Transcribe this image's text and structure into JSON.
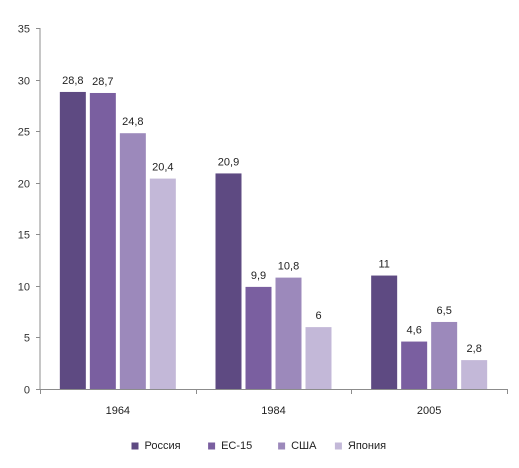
{
  "chart_data": {
    "type": "bar",
    "categories": [
      "1964",
      "1984",
      "2005"
    ],
    "series": [
      {
        "name": "Россия",
        "color": "#5e4a82",
        "values": [
          28.8,
          20.9,
          11
        ],
        "labels": [
          "28,8",
          "20,9",
          "11"
        ]
      },
      {
        "name": "ЕС-15",
        "color": "#7a5fa0",
        "values": [
          28.7,
          9.9,
          4.6
        ],
        "labels": [
          "28,7",
          "9,9",
          "4,6"
        ]
      },
      {
        "name": "США",
        "color": "#9c89bb",
        "values": [
          24.8,
          10.8,
          6.5
        ],
        "labels": [
          "24,8",
          "10,8",
          "6,5"
        ]
      },
      {
        "name": "Япония",
        "color": "#c3b8d8",
        "values": [
          20.4,
          6,
          2.8
        ],
        "labels": [
          "20,4",
          "6",
          "2,8"
        ]
      }
    ],
    "ylim": [
      0,
      35
    ],
    "yticks": [
      0,
      5,
      10,
      15,
      20,
      25,
      30,
      35
    ],
    "grid": false,
    "legend": "bottom-center"
  }
}
